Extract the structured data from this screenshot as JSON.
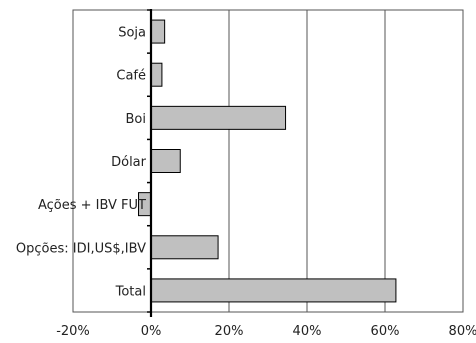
{
  "chart_data": {
    "type": "bar",
    "orientation": "horizontal",
    "categories": [
      "Soja",
      "Café",
      "Boi",
      "Dólar",
      "Ações + IBV FUT",
      "Opções: IDI,US$,IBV",
      "Total"
    ],
    "values": [
      3.5,
      2.8,
      34.5,
      7.5,
      -3.2,
      17.2,
      62.8
    ],
    "value_unit": "%",
    "xlim": [
      -20,
      80
    ],
    "xticks": [
      -20,
      0,
      20,
      40,
      60,
      80
    ],
    "xtick_labels": [
      "-20%",
      "0%",
      "20%",
      "40%",
      "60%",
      "80%"
    ],
    "title": "",
    "xlabel": "",
    "ylabel": "",
    "grid": "vertical",
    "legend": "none",
    "colors": {
      "bar_fill": "#c0c0c0",
      "bar_stroke": "#000000",
      "grid": "#555555",
      "frame": "#555555",
      "zero_axis": "#000000"
    }
  }
}
